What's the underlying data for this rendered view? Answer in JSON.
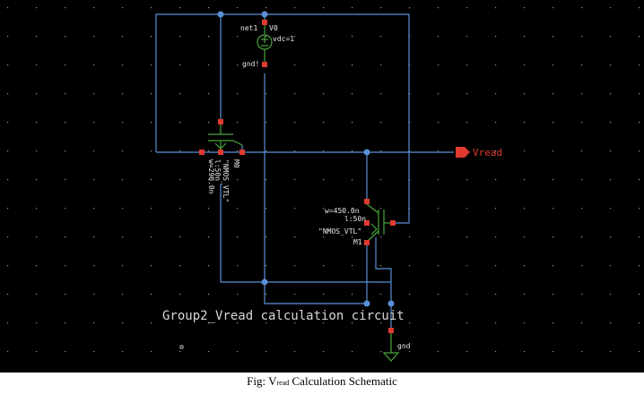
{
  "schematic": {
    "title_label": "Group2_Vread calculation circuit",
    "source": {
      "pos_net": "net1",
      "instance": "V0",
      "param": "vdc=1",
      "neg_net": "gnd!"
    },
    "m0": {
      "width": "w=290.0n",
      "length": "l:50n",
      "model": "\"NMOS_VTL\"",
      "instance": "M0"
    },
    "m1": {
      "width": "w=450.0n",
      "length": "l:50n",
      "model": "\"NMOS_VTL\"",
      "instance": "M1"
    },
    "output_pin": "Vread",
    "ground_label": "gnd",
    "colors": {
      "wire": "#5a8fd6",
      "pin": "#e03a2f",
      "device": "#4aa63a",
      "text": "#e8e8e8"
    }
  },
  "caption": {
    "prefix": "Fig: V",
    "subscript": "read",
    "suffix": " Calculation Schematic"
  }
}
